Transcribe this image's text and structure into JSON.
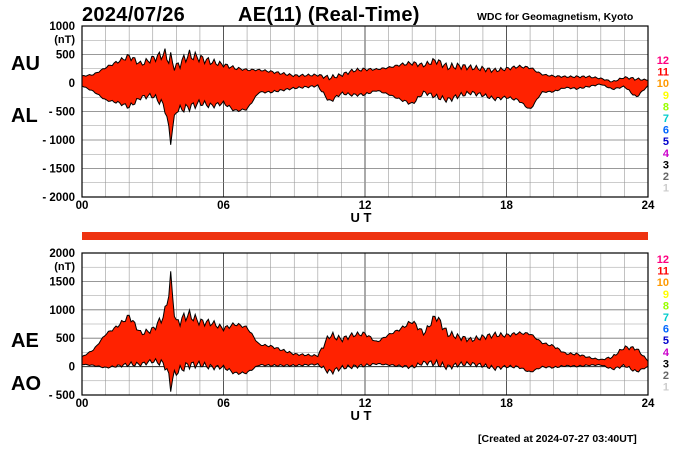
{
  "header": {
    "date": "2024/07/26",
    "index_title": "AE(11) (Real-Time)",
    "source": "WDC for Geomagnetism, Kyoto",
    "created": "[Created at 2024-07-27 03:40UT]"
  },
  "legend": {
    "stations": [
      "12",
      "11",
      "10",
      "9",
      "8",
      "7",
      "6",
      "5",
      "4",
      "3",
      "2",
      "1"
    ],
    "colors": [
      "#ff0080",
      "#ff0000",
      "#ff9900",
      "#ffff00",
      "#99ff00",
      "#00cccc",
      "#0066ff",
      "#0000cc",
      "#cc00cc",
      "#000000",
      "#666666",
      "#cccccc"
    ]
  },
  "colors": {
    "fill": "#ff2200",
    "coverage_bar": "#ee3311",
    "grid": "#999999"
  },
  "chart_data": [
    {
      "type": "area",
      "name": "AU/AL",
      "series_labels": {
        "upper": "AU",
        "lower": "AL"
      },
      "unit": "(nT)",
      "xlabel": "U T",
      "xlim": [
        0,
        24
      ],
      "ylim": [
        -2000,
        1000
      ],
      "x_ticks": [
        "00",
        "06",
        "12",
        "18",
        "24"
      ],
      "y_ticks": [
        "1000",
        "500",
        "0",
        "- 500",
        "- 1000",
        "- 1500",
        "- 2000"
      ],
      "x_hours": [
        0,
        0.5,
        1,
        1.5,
        2,
        2.5,
        3,
        3.5,
        3.75,
        4,
        4.5,
        5,
        5.5,
        6,
        6.5,
        7,
        7.5,
        8,
        9,
        10,
        10.5,
        11,
        11.5,
        12,
        12.5,
        13,
        13.5,
        14,
        14.5,
        15,
        15.5,
        16,
        16.5,
        17,
        17.5,
        18,
        18.5,
        19,
        19.5,
        20,
        20.5,
        21,
        21.5,
        22,
        22.5,
        23,
        23.5,
        24
      ],
      "AU": [
        120,
        150,
        270,
        370,
        470,
        330,
        430,
        510,
        400,
        280,
        490,
        440,
        370,
        320,
        260,
        230,
        230,
        200,
        130,
        140,
        90,
        140,
        220,
        240,
        240,
        270,
        320,
        350,
        310,
        400,
        280,
        300,
        270,
        250,
        220,
        250,
        290,
        270,
        150,
        120,
        110,
        110,
        110,
        80,
        20,
        100,
        70,
        50
      ],
      "AL": [
        -50,
        -150,
        -300,
        -340,
        -420,
        -250,
        -220,
        -400,
        -990,
        -480,
        -430,
        -350,
        -400,
        -350,
        -490,
        -460,
        -160,
        -160,
        -90,
        -50,
        -330,
        -180,
        -210,
        -200,
        -130,
        -200,
        -290,
        -370,
        -160,
        -240,
        -300,
        -220,
        -170,
        -210,
        -280,
        -250,
        -300,
        -470,
        -160,
        -150,
        -80,
        -100,
        -60,
        -20,
        -110,
        -60,
        -250,
        -50
      ]
    },
    {
      "type": "area",
      "name": "AE/AO",
      "series_labels": {
        "upper": "AE",
        "lower": "AO"
      },
      "unit": "(nT)",
      "xlabel": "U T",
      "xlim": [
        0,
        24
      ],
      "ylim": [
        -500,
        2000
      ],
      "x_ticks": [
        "00",
        "06",
        "12",
        "18",
        "24"
      ],
      "y_ticks": [
        "2000",
        "1500",
        "1000",
        "500",
        "0",
        "- 500"
      ],
      "x_hours": [
        0,
        0.5,
        1,
        1.5,
        2,
        2.5,
        3,
        3.5,
        3.75,
        4,
        4.5,
        5,
        5.5,
        6,
        6.5,
        7,
        7.5,
        8,
        9,
        10,
        10.5,
        11,
        11.5,
        12,
        12.5,
        13,
        13.5,
        14,
        14.5,
        15,
        15.5,
        16,
        16.5,
        17,
        17.5,
        18,
        18.5,
        19,
        19.5,
        20,
        20.5,
        21,
        21.5,
        22,
        22.5,
        23,
        23.5,
        24
      ],
      "AE": [
        170,
        300,
        570,
        710,
        890,
        580,
        650,
        910,
        1520,
        760,
        920,
        790,
        770,
        670,
        750,
        690,
        390,
        360,
        220,
        190,
        560,
        480,
        560,
        580,
        430,
        560,
        660,
        800,
        580,
        900,
        580,
        520,
        470,
        520,
        560,
        550,
        590,
        580,
        420,
        360,
        230,
        220,
        160,
        120,
        170,
        340,
        320,
        100
      ],
      "AO": [
        40,
        20,
        -20,
        10,
        40,
        40,
        100,
        50,
        -300,
        -100,
        30,
        40,
        -10,
        -10,
        -120,
        -110,
        30,
        20,
        20,
        40,
        -100,
        -20,
        0,
        20,
        50,
        30,
        10,
        -10,
        70,
        60,
        -10,
        40,
        50,
        20,
        -30,
        0,
        -5,
        -100,
        -5,
        -15,
        15,
        5,
        25,
        30,
        -45,
        20,
        -90,
        0
      ]
    }
  ]
}
